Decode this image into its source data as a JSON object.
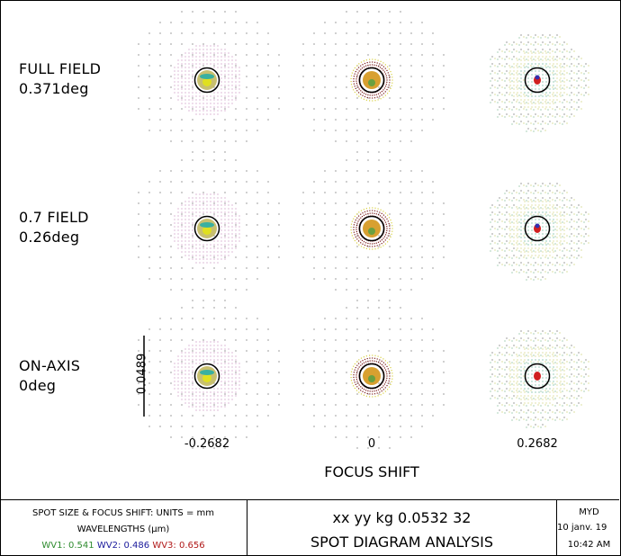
{
  "chart_data": {
    "type": "spot-diagram",
    "title": "SPOT DIAGRAM ANALYSIS",
    "subtitle": "xx yy kg 0.0532 32",
    "xlabel": "FOCUS SHIFT",
    "focus_shifts": [
      "-0.2682",
      "0",
      "0.2682"
    ],
    "scale_bar": "0.0489",
    "fields": [
      {
        "name": "FULL FIELD",
        "angle": "0.371deg"
      },
      {
        "name": "0.7 FIELD",
        "angle": "0.26deg"
      },
      {
        "name": "ON-AXIS",
        "angle": "0deg"
      }
    ],
    "wavelengths": [
      {
        "name": "WV1",
        "value": "0.541",
        "color": "#2e8b2e"
      },
      {
        "name": "WV2",
        "value": "0.486",
        "color": "#1a1a9c"
      },
      {
        "name": "WV3",
        "value": "0.656",
        "color": "#b01818"
      }
    ]
  },
  "footer": {
    "units_line": "SPOT SIZE & FOCUS SHIFT: UNITS = mm",
    "wavelengths_title": "WAVELENGTHS (µm)",
    "title_line1": "xx yy kg 0.0532 32",
    "title_line2": "SPOT DIAGRAM ANALYSIS",
    "user": "MYD",
    "date": "10 janv. 19",
    "time": "10:42 AM"
  }
}
